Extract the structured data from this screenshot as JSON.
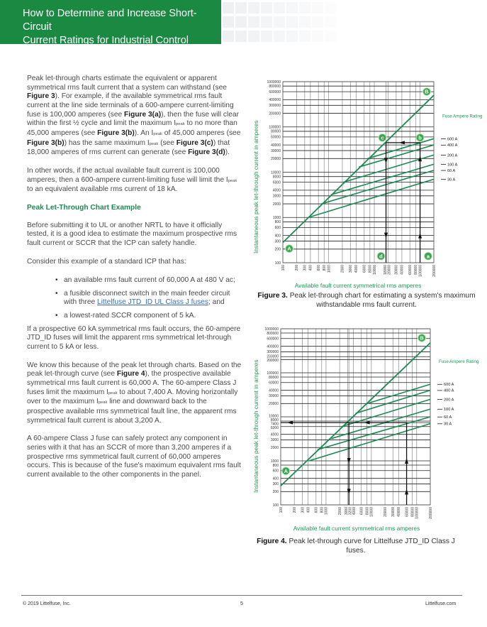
{
  "header": {
    "title_line1": "How to Determine and Increase Short-Circuit",
    "title_line2": "Current Ratings for Industrial Control Panels",
    "brand_color": "#1a8a43"
  },
  "body": {
    "blocks": [
      {
        "type": "p",
        "segments": [
          {
            "t": "Peak let-through charts estimate the equivalent or apparent symmetrical rms fault current that a system can withstand (see "
          },
          {
            "t": "Figure 3",
            "b": true
          },
          {
            "t": "). For example, if the available symmetrical rms fault current at the line side terminals of a 600-ampere current-limiting fuse is 100,000 amperes (see "
          },
          {
            "t": "Figure 3(a)",
            "b": true
          },
          {
            "t": "), then the fuse will clear within the first ½ cycle and limit the maximum I"
          },
          {
            "t": "peak",
            "sub": true
          },
          {
            "t": " to no more than 45,000 amperes (see "
          },
          {
            "t": "Figure 3(b)",
            "b": true
          },
          {
            "t": "). An I"
          },
          {
            "t": "peak",
            "sub": true
          },
          {
            "t": " of 45,000 amperes (see "
          },
          {
            "t": "Figure 3(b)",
            "b": true
          },
          {
            "t": ") has the same maximum I"
          },
          {
            "t": "peak",
            "sub": true
          },
          {
            "t": " (see "
          },
          {
            "t": "Figure 3(c)",
            "b": true
          },
          {
            "t": ") that 18,000 amperes of rms current can generate (see "
          },
          {
            "t": "Figure 3(d)",
            "b": true
          },
          {
            "t": ")."
          }
        ]
      },
      {
        "type": "p",
        "segments": [
          {
            "t": "In other words, if the actual available fault current is 100,000 amperes, then a 600-ampere current-limiting fuse will limit the I"
          },
          {
            "t": "peak",
            "sub": true
          },
          {
            "t": " to an equivalent available rms current of 18 kA."
          }
        ]
      },
      {
        "type": "h",
        "segments": [
          {
            "t": "Peak Let-Through Chart Example"
          }
        ]
      },
      {
        "type": "p",
        "segments": [
          {
            "t": "Before submitting it to UL or another NRTL to have it officially tested, it is a good idea to estimate the maximum prospective rms fault current or SCCR that the ICP can safety handle."
          }
        ]
      },
      {
        "type": "p",
        "segments": [
          {
            "t": "Consider this example of a standard ICP that has:"
          }
        ]
      },
      {
        "type": "ul",
        "items": [
          {
            "segments": [
              {
                "t": "an available rms fault current of 60,000 A at 480 V ac;"
              }
            ]
          },
          {
            "segments": [
              {
                "t": "a fusible disconnect switch in the main feeder circuit with three "
              },
              {
                "t": "Littelfuse JTD_ID UL Class J fuses",
                "link": true
              },
              {
                "t": "; and"
              }
            ]
          },
          {
            "segments": [
              {
                "t": "a lowest-rated SCCR component of 5 kA."
              }
            ]
          }
        ]
      },
      {
        "type": "p",
        "segments": [
          {
            "t": "If a prospective 60 kA symmetrical rms fault occurs, the 60-ampere JTD_ID fuses will limit the apparent rms symmetrical let-through current to 5 kA or less."
          }
        ]
      },
      {
        "type": "p",
        "segments": [
          {
            "t": "We know this because of the peak let through charts. Based on the peak let-through curve (see "
          },
          {
            "t": "Figure 4",
            "b": true
          },
          {
            "t": "), the prospective available symmetrical rms fault current is 60,000 A. The 60-ampere Class J fuses limit the maximum I"
          },
          {
            "t": "peak",
            "sub": true
          },
          {
            "t": " to about 7,400 A. Moving horizontally over to the maximum I"
          },
          {
            "t": "peak",
            "sub": true
          },
          {
            "t": " line and downward back to the prospective available rms symmetrical fault line, the apparent rms symmetrical fault current is about 3,200 A."
          }
        ]
      },
      {
        "type": "p",
        "segments": [
          {
            "t": "A 60-ampere Class J fuse can safely protect any component in series with it that has an SCCR of more than 3,200 amperes if a prospective rms symmetrical fault current of 60,000 amperes occurs. This is because of the fuse's maximum equivalent rms fault current available to the other components in the panel."
          }
        ]
      }
    ]
  },
  "chart_data": [
    {
      "type": "line",
      "figure_label": "Figure 3.",
      "caption": "Peak let-through chart for estimating a system's maximum withstandable rms fault current.",
      "xlabel": "Available fault current symmetrical rms amperes",
      "ylabel": "Instantaneous peak let-through current in amperes",
      "x_scale": "log",
      "y_scale": "log",
      "xlim": [
        100,
        200000
      ],
      "ylim": [
        100,
        1000000
      ],
      "grid": true,
      "x_ticks": [
        "100",
        "200",
        "300",
        "400",
        "600",
        "800",
        "1000",
        "2000",
        "3000",
        "4000",
        "6000",
        "8000",
        "10000",
        "18000",
        "20000",
        "30000",
        "40000",
        "60000",
        "80000",
        "100000",
        "200000"
      ],
      "y_ticks": [
        "100",
        "200",
        "300",
        "400",
        "600",
        "800",
        "1000",
        "2000",
        "3000",
        "4000",
        "6000",
        "8000",
        "10000",
        "20000",
        "30000",
        "40000",
        "60000",
        "80000",
        "100000",
        "200000",
        "300000",
        "400000",
        "600000",
        "800000",
        "1000000"
      ],
      "legend_title": "Fuse Ampere Rating",
      "threshold": [
        [
          100,
          280
        ],
        [
          200000,
          500000
        ]
      ],
      "series": [
        {
          "name": "600 A",
          "points": [
            [
              7100,
              20000
            ],
            [
              200000,
              55000
            ]
          ]
        },
        {
          "name": "400 A",
          "points": [
            [
              4600,
              13000
            ],
            [
              200000,
              40000
            ]
          ]
        },
        {
          "name": "200 A",
          "points": [
            [
              2100,
              6000
            ],
            [
              200000,
              24000
            ]
          ]
        },
        {
          "name": "100 A",
          "points": [
            [
              1150,
              3200
            ],
            [
              200000,
              15000
            ]
          ]
        },
        {
          "name": "60 A",
          "points": [
            [
              700,
              2000
            ],
            [
              200000,
              11000
            ]
          ]
        },
        {
          "name": "30 A",
          "points": [
            [
              360,
              1000
            ],
            [
              200000,
              7000
            ]
          ]
        }
      ],
      "guides": [
        [
          [
            100000,
            100
          ],
          [
            100000,
            45000
          ]
        ],
        [
          [
            100000,
            45000
          ],
          [
            18000,
            45000
          ]
        ],
        [
          [
            18000,
            45000
          ],
          [
            18000,
            100
          ]
        ]
      ],
      "arrows": [
        {
          "at": [
            100000,
            400
          ],
          "dir": "up"
        },
        {
          "at": [
            100000,
            20000
          ],
          "dir": "up"
        },
        {
          "at": [
            40000,
            45000
          ],
          "dir": "left"
        },
        {
          "at": [
            18000,
            18000
          ],
          "dir": "down"
        },
        {
          "at": [
            18000,
            400
          ],
          "dir": "down"
        }
      ],
      "markers": [
        {
          "label": "A",
          "at": [
            138,
            205
          ]
        },
        {
          "label": "B",
          "at": [
            140000,
            600000
          ]
        },
        {
          "label": "a",
          "at": [
            150000,
            140
          ]
        },
        {
          "label": "b",
          "at": [
            100000,
            58000
          ]
        },
        {
          "label": "c",
          "at": [
            15000,
            58000
          ]
        },
        {
          "label": "d",
          "at": [
            14000,
            140
          ]
        }
      ]
    },
    {
      "type": "line",
      "figure_label": "Figure 4.",
      "caption": "Peak let-through curve for Littelfuse JTD_ID Class J fuses.",
      "xlabel": "Available fault current symmetrical rms amperes",
      "ylabel": "Instantaneous peak let-through current in amperes",
      "x_scale": "log",
      "y_scale": "log",
      "xlim": [
        100,
        200000
      ],
      "ylim": [
        100,
        1000000
      ],
      "grid": true,
      "x_ticks": [
        "100",
        "200",
        "300",
        "400",
        "600",
        "800",
        "1000",
        "2000",
        "3000",
        "3200",
        "4000",
        "6000",
        "8000",
        "10000",
        "20000",
        "30000",
        "40000",
        "60000",
        "80000",
        "100000",
        "200000"
      ],
      "y_ticks": [
        "100",
        "200",
        "300",
        "400",
        "600",
        "800",
        "1000",
        "2000",
        "3000",
        "4000",
        "6000",
        "7400",
        "8000",
        "10000",
        "20000",
        "30000",
        "40000",
        "60000",
        "80000",
        "100000",
        "200000",
        "233000",
        "300000",
        "400000",
        "600000",
        "800000",
        "1000000"
      ],
      "legend_title": "Fuse Ampere Rating",
      "threshold": [
        [
          100,
          270
        ],
        [
          200000,
          480000
        ]
      ],
      "series": [
        {
          "name": "600 A",
          "points": [
            [
              8000,
              20000
            ],
            [
              200000,
              55000
            ]
          ]
        },
        {
          "name": "400 A",
          "points": [
            [
              4500,
              12000
            ],
            [
              200000,
              40000
            ]
          ]
        },
        {
          "name": "200 A",
          "points": [
            [
              2200,
              6000
            ],
            [
              200000,
              25000
            ]
          ]
        },
        {
          "name": "100 A",
          "points": [
            [
              1300,
              3200
            ],
            [
              200000,
              15000
            ]
          ]
        },
        {
          "name": "60 A",
          "points": [
            [
              650,
              1800
            ],
            [
              200000,
              10000
            ]
          ]
        },
        {
          "name": "30 A",
          "points": [
            [
              420,
              1000
            ],
            [
              200000,
              7000
            ]
          ]
        }
      ],
      "guides": [
        [
          [
            60000,
            100
          ],
          [
            60000,
            7400
          ]
        ],
        [
          [
            60000,
            7400
          ],
          [
            100,
            7400
          ]
        ],
        [
          [
            3200,
            7400
          ],
          [
            3200,
            100
          ]
        ]
      ],
      "arrows": [
        {
          "at": [
            60000,
            200
          ],
          "dir": "up"
        },
        {
          "at": [
            60000,
            1000
          ],
          "dir": "up"
        },
        {
          "at": [
            8000,
            7400
          ],
          "dir": "left"
        },
        {
          "at": [
            160,
            7400
          ],
          "dir": "left"
        },
        {
          "at": [
            3200,
            1000
          ],
          "dir": "down"
        },
        {
          "at": [
            3200,
            200
          ],
          "dir": "down"
        }
      ],
      "markers": [
        {
          "label": "A",
          "at": [
            130,
            590
          ]
        },
        {
          "label": "B",
          "at": [
            130000,
            620000
          ]
        }
      ]
    }
  ],
  "footer": {
    "copyright": "© 2019 Littelfuse, Inc.",
    "page": "5",
    "site": "Littelfuse.com"
  }
}
